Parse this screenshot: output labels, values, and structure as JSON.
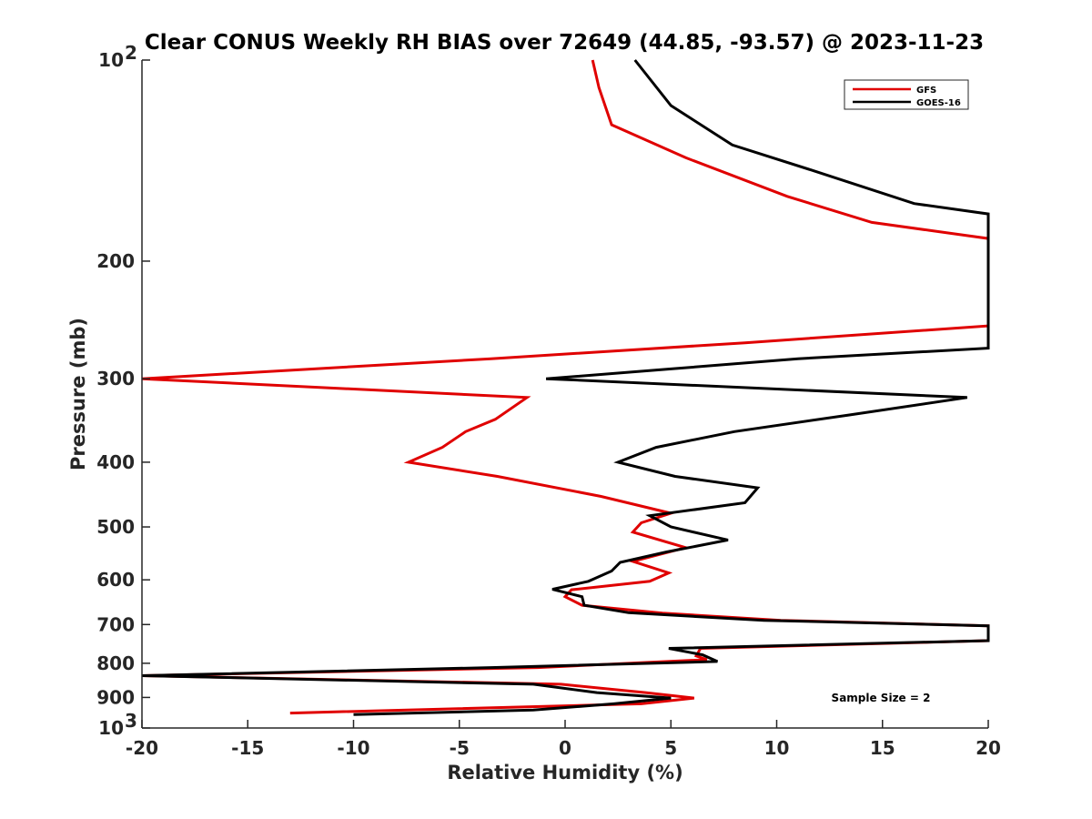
{
  "chart_data": {
    "type": "line",
    "title": "Clear CONUS Weekly RH BIAS over 72649 (44.85, -93.57) @ 2023-11-23",
    "xlabel": "Relative Humidity (%)",
    "ylabel": "Pressure (mb)",
    "xlim": [
      -20,
      20
    ],
    "ylim": [
      100,
      1000
    ],
    "y_scale": "log",
    "y_reversed": true,
    "x_ticks": [
      -20,
      -15,
      -10,
      -5,
      0,
      5,
      10,
      15,
      20
    ],
    "x_tick_labels": [
      "-20",
      "-15",
      "-10",
      "-5",
      "0",
      "5",
      "10",
      "15",
      "20"
    ],
    "y_ticks": [
      100,
      200,
      300,
      400,
      500,
      600,
      700,
      800,
      900,
      1000
    ],
    "y_tick_labels": [
      {
        "base": "10",
        "exp": "2"
      },
      {
        "base": "200",
        "exp": ""
      },
      {
        "base": "300",
        "exp": ""
      },
      {
        "base": "400",
        "exp": ""
      },
      {
        "base": "500",
        "exp": ""
      },
      {
        "base": "600",
        "exp": ""
      },
      {
        "base": "700",
        "exp": ""
      },
      {
        "base": "800",
        "exp": ""
      },
      {
        "base": "900",
        "exp": ""
      },
      {
        "base": "10",
        "exp": "3"
      }
    ],
    "grid": false,
    "legend_position": "top-right",
    "annotation": "Sample Size = 2",
    "series": [
      {
        "name": "GFS",
        "color": "#e00000",
        "points": [
          [
            1.3,
            100
          ],
          [
            1.6,
            110
          ],
          [
            2.2,
            125
          ],
          [
            5.7,
            140
          ],
          [
            10.5,
            160
          ],
          [
            14.5,
            175
          ],
          [
            20,
            185
          ],
          [
            20,
            250
          ],
          [
            8.5,
            265
          ],
          [
            -3.5,
            280
          ],
          [
            -20,
            300
          ],
          [
            -1.8,
            320
          ],
          [
            -3.3,
            345
          ],
          [
            -4.7,
            360
          ],
          [
            -5.8,
            380
          ],
          [
            -7.4,
            400
          ],
          [
            -3.2,
            420
          ],
          [
            1.7,
            450
          ],
          [
            5.0,
            477
          ],
          [
            3.6,
            493
          ],
          [
            3.2,
            509
          ],
          [
            5.7,
            537
          ],
          [
            3.2,
            563
          ],
          [
            4.9,
            586
          ],
          [
            4.0,
            603
          ],
          [
            0.3,
            621
          ],
          [
            0.0,
            636
          ],
          [
            0.8,
            655
          ],
          [
            4.6,
            673
          ],
          [
            10.2,
            690
          ],
          [
            20,
            703
          ],
          [
            20,
            740
          ],
          [
            6.4,
            760
          ],
          [
            6.2,
            780
          ],
          [
            6.7,
            790
          ],
          [
            -1.3,
            812
          ],
          [
            -20,
            835
          ],
          [
            -0.2,
            860
          ],
          [
            3.8,
            885
          ],
          [
            6.1,
            902
          ],
          [
            3.6,
            920
          ],
          [
            -13.0,
            950
          ]
        ]
      },
      {
        "name": "GOES-16",
        "color": "#000000",
        "points": [
          [
            3.3,
            100
          ],
          [
            5.0,
            117
          ],
          [
            7.9,
            134
          ],
          [
            11.6,
            146
          ],
          [
            16.5,
            164
          ],
          [
            20,
            170
          ],
          [
            20,
            270
          ],
          [
            11.0,
            280
          ],
          [
            5.0,
            290
          ],
          [
            -0.9,
            300
          ],
          [
            19.0,
            320
          ],
          [
            13.4,
            340
          ],
          [
            8.0,
            360
          ],
          [
            4.3,
            380
          ],
          [
            2.5,
            400
          ],
          [
            5.2,
            420
          ],
          [
            9.1,
            437
          ],
          [
            8.5,
            460
          ],
          [
            4.0,
            481
          ],
          [
            5.0,
            500
          ],
          [
            7.7,
            523
          ],
          [
            4.8,
            545
          ],
          [
            2.6,
            565
          ],
          [
            2.2,
            582
          ],
          [
            1.1,
            603
          ],
          [
            -0.6,
            620
          ],
          [
            0.8,
            636
          ],
          [
            0.9,
            655
          ],
          [
            3.0,
            672
          ],
          [
            9.4,
            690
          ],
          [
            20,
            703
          ],
          [
            20,
            740
          ],
          [
            4.9,
            760
          ],
          [
            6.5,
            777
          ],
          [
            7.2,
            795
          ],
          [
            -3.5,
            812
          ],
          [
            -20,
            835
          ],
          [
            -1.5,
            860
          ],
          [
            1.5,
            885
          ],
          [
            5.0,
            902
          ],
          [
            2.3,
            920
          ],
          [
            -1.5,
            940
          ],
          [
            -10.0,
            955
          ]
        ]
      }
    ]
  }
}
